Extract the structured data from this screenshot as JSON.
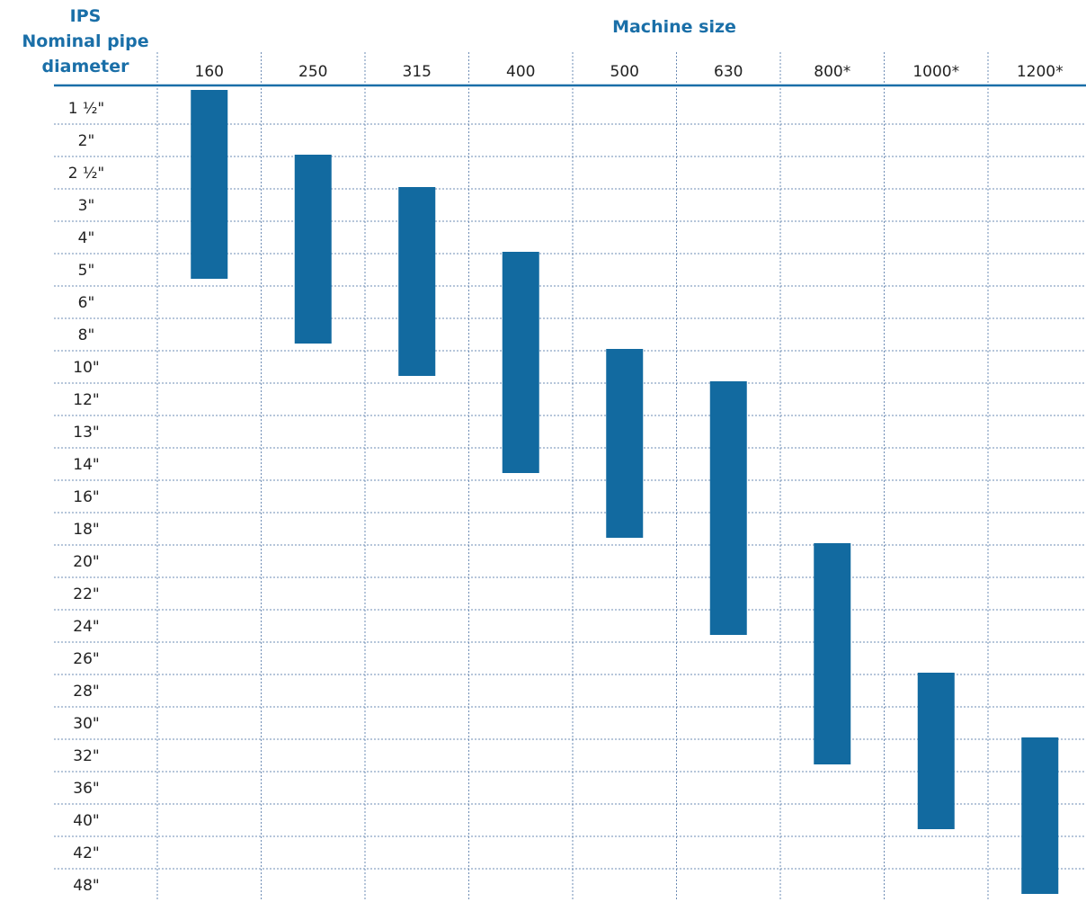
{
  "chart_data": {
    "type": "range-bar",
    "row_header": [
      "IPS",
      "Nominal pipe",
      "diameter"
    ],
    "column_header": "Machine size",
    "categories": [
      "160",
      "250",
      "315",
      "400",
      "500",
      "630",
      "800*",
      "1000*",
      "1200*"
    ],
    "rows": [
      "1 ½\"",
      "2\"",
      "2 ½\"",
      "3\"",
      "4\"",
      "5\"",
      "6\"",
      "8\"",
      "10\"",
      "12\"",
      "13\"",
      "14\"",
      "16\"",
      "18\"",
      "20\"",
      "22\"",
      "24\"",
      "26\"",
      "28\"",
      "30\"",
      "32\"",
      "36\"",
      "40\"",
      "42\"",
      "48\""
    ],
    "ranges": [
      {
        "category": "160",
        "start": "1 ½\"",
        "end": "5\""
      },
      {
        "category": "250",
        "start": "2 ½\"",
        "end": "8\""
      },
      {
        "category": "315",
        "start": "3\"",
        "end": "10\""
      },
      {
        "category": "400",
        "start": "5\"",
        "end": "14\""
      },
      {
        "category": "500",
        "start": "10\"",
        "end": "18\""
      },
      {
        "category": "630",
        "start": "12\"",
        "end": "24\""
      },
      {
        "category": "800*",
        "start": "20\"",
        "end": "32\""
      },
      {
        "category": "1000*",
        "start": "28\"",
        "end": "40\""
      },
      {
        "category": "1200*",
        "start": "32\"",
        "end": "48\""
      }
    ],
    "bar_color": "#126aa0",
    "header_color": "#1a6fa8",
    "rule_color": "#6e8cb4",
    "grid": true
  }
}
